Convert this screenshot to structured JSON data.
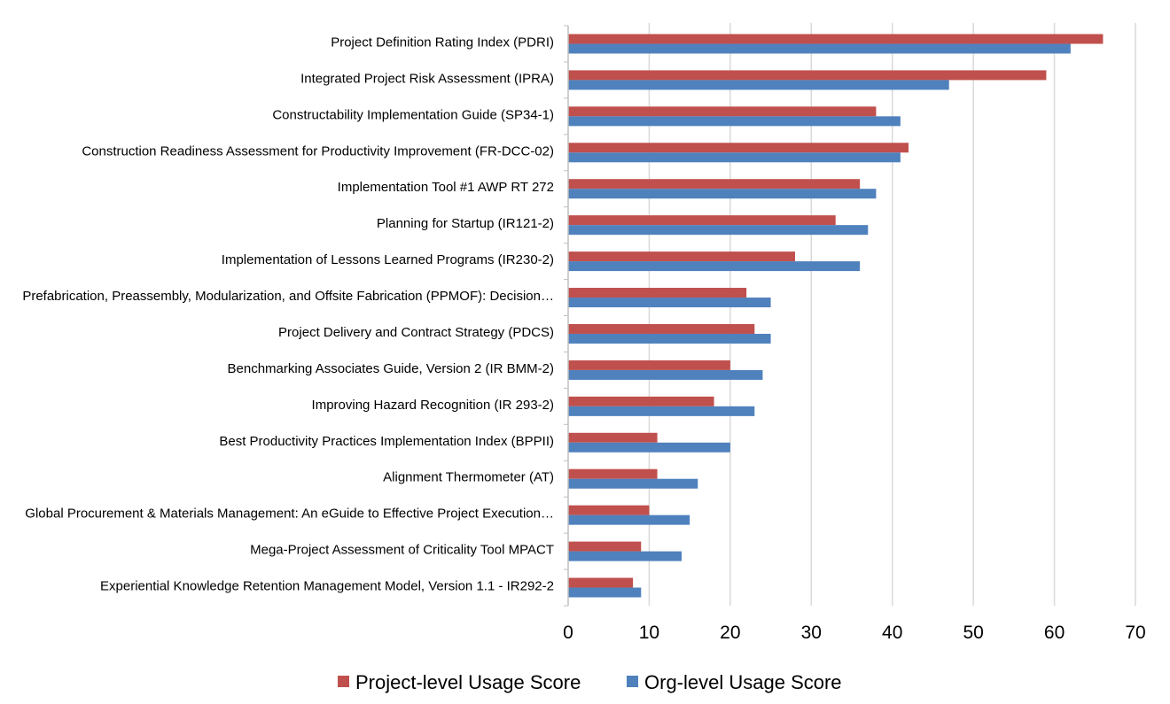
{
  "chart_data": {
    "type": "bar",
    "orientation": "horizontal",
    "categories": [
      "Project Definition Rating Index (PDRI)",
      "Integrated Project Risk Assessment (IPRA)",
      "Constructability Implementation Guide (SP34-1)",
      "Construction Readiness Assessment for Productivity Improvement (FR-DCC-02)",
      "Implementation Tool #1 AWP RT 272",
      "Planning for Startup (IR121-2)",
      "Implementation of Lessons Learned Programs (IR230-2)",
      "Prefabrication, Preassembly, Modularization, and Offsite Fabrication (PPMOF): Decision…",
      "Project Delivery and Contract Strategy (PDCS)",
      "Benchmarking Associates Guide, Version 2 (IR BMM-2)",
      "Improving Hazard Recognition (IR 293-2)",
      "Best Productivity Practices Implementation Index (BPPII)",
      "Alignment Thermometer (AT)",
      "Global Procurement & Materials Management: An eGuide to Effective Project Execution…",
      "Mega-Project Assessment of Criticality Tool MPACT",
      "Experiential Knowledge Retention Management Model, Version 1.1 - IR292-2"
    ],
    "series": [
      {
        "name": "Project-level Usage Score",
        "color": "#C0504D",
        "values": [
          66,
          59,
          38,
          42,
          36,
          33,
          28,
          22,
          23,
          20,
          18,
          11,
          11,
          10,
          9,
          8
        ]
      },
      {
        "name": "Org-level Usage Score",
        "color": "#4F81BD",
        "values": [
          62,
          47,
          41,
          41,
          38,
          37,
          36,
          25,
          25,
          24,
          23,
          20,
          16,
          15,
          14,
          9
        ]
      }
    ],
    "xlim": [
      0,
      70
    ],
    "xticks": [
      "0",
      "10",
      "20",
      "30",
      "40",
      "50",
      "60",
      "70"
    ],
    "xlabel": "",
    "ylabel": "",
    "grid": "vertical",
    "legend_position": "bottom"
  }
}
